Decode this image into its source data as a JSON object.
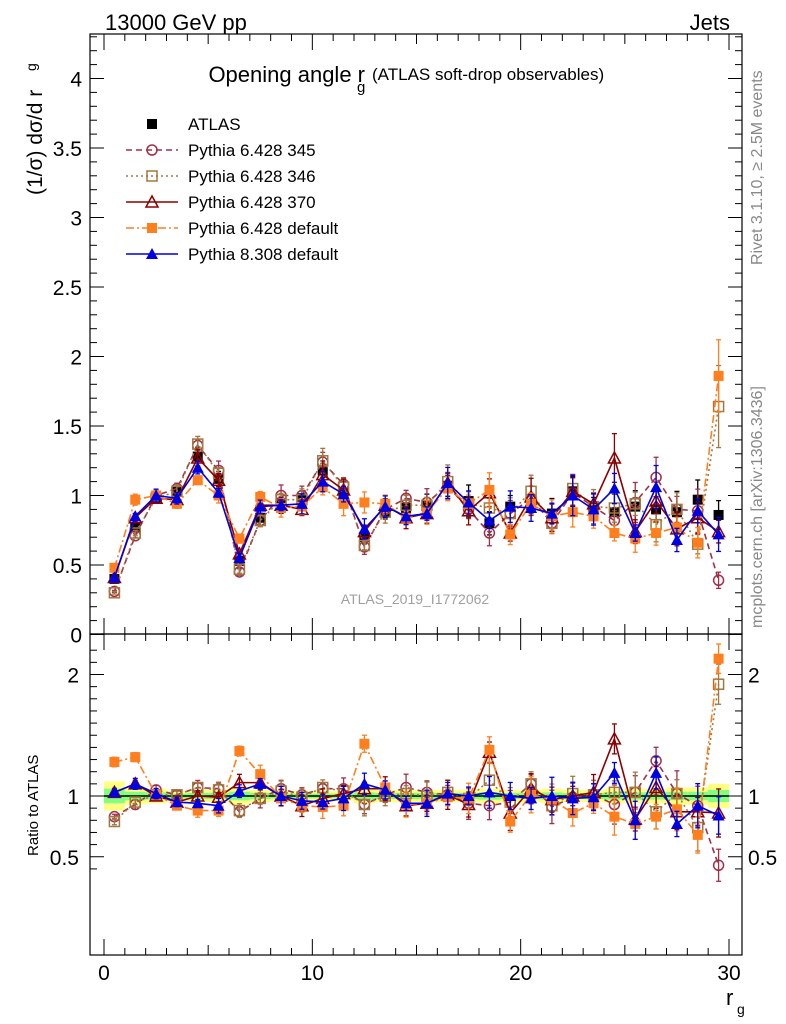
{
  "header": {
    "process": "13000 GeV pp",
    "category": "Jets",
    "title_main": "Opening angle r",
    "title_sub": "g",
    "title_paren": "(ATLAS soft-drop observables)",
    "ylabel_main": "(1/σ) dσ/d r",
    "ylabel_sub": "g",
    "side_rivet": "Rivet 3.1.10, ≥ 2.5M events",
    "side_mcplots": "mcplots.cern.ch [arXiv:1306.3436]",
    "analysis_id": "ATLAS_2019_I1772062",
    "ratio_ylabel": "Ratio to ATLAS",
    "xlabel_main": "r",
    "xlabel_sub": "g"
  },
  "colors": {
    "atlas": "#000000",
    "p345": "#a0304a",
    "p346": "#a07840",
    "p370": "#8b0000",
    "p6def": "#ff7f1e",
    "p8def": "#0000e0",
    "band_inner": "#80ff80",
    "band_outer": "#ffff80"
  },
  "chart_data": [
    {
      "type": "line",
      "panel": "main",
      "ylim": [
        0,
        4.3
      ],
      "xlim": [
        0,
        30
      ],
      "x": [
        0.5,
        1.5,
        2.5,
        3.5,
        4.5,
        5.5,
        6.5,
        7.5,
        8.5,
        9.5,
        10.5,
        11.5,
        12.5,
        13.5,
        14.5,
        15.5,
        16.5,
        17.5,
        18.5,
        19.5,
        20.5,
        21.5,
        22.5,
        23.5,
        24.5,
        25.5,
        26.5,
        27.5,
        28.5,
        29.5
      ],
      "yticks": [
        "0",
        "0.5",
        "1",
        "1.5",
        "2",
        "2.5",
        "3",
        "3.5",
        "4"
      ],
      "xticks": [
        "0",
        "10",
        "20",
        "30"
      ],
      "legend_position": "top-left",
      "series": [
        {
          "name": "ATLAS",
          "values": [
            0.4,
            0.77,
            0.98,
            1.03,
            1.28,
            1.12,
            0.53,
            0.84,
            0.93,
            0.98,
            1.18,
            1.02,
            0.7,
            0.88,
            0.91,
            0.93,
            1.07,
            0.96,
            0.8,
            0.92,
            0.93,
            0.87,
            1.03,
            0.91,
            0.88,
            0.92,
            0.9,
            0.88,
            0.97,
            0.86
          ]
        },
        {
          "name": "Pythia 6.428 345",
          "values": [
            0.31,
            0.71,
            1.0,
            1.05,
            1.36,
            1.18,
            0.45,
            0.82,
            1.0,
            1.0,
            1.24,
            1.08,
            0.63,
            0.9,
            0.98,
            0.95,
            1.07,
            0.9,
            0.73,
            0.87,
            0.98,
            0.8,
            1.02,
            0.92,
            0.82,
            0.95,
            1.13,
            0.9,
            0.89,
            0.39
          ]
        },
        {
          "name": "Pythia 6.428 346",
          "values": [
            0.3,
            0.73,
            0.98,
            1.03,
            1.37,
            1.16,
            0.47,
            0.82,
            0.97,
            0.97,
            1.25,
            1.06,
            0.64,
            0.88,
            0.93,
            0.93,
            1.1,
            0.94,
            0.91,
            0.87,
            1.03,
            0.8,
            1.05,
            0.92,
            0.91,
            0.94,
            0.79,
            0.9,
            0.65,
            1.64
          ]
        },
        {
          "name": "Pythia 6.428 370",
          "values": [
            0.41,
            0.84,
            0.98,
            0.97,
            1.27,
            1.11,
            0.58,
            0.93,
            0.93,
            0.9,
            1.15,
            1.04,
            0.74,
            0.93,
            0.84,
            0.87,
            1.09,
            0.89,
            1.02,
            0.73,
            0.99,
            0.84,
            1.03,
            0.94,
            1.27,
            0.74,
            0.96,
            0.76,
            0.84,
            0.74
          ]
        },
        {
          "name": "Pythia 6.428 default",
          "values": [
            0.48,
            0.97,
            1.0,
            0.94,
            1.11,
            1.0,
            0.69,
            0.99,
            0.91,
            0.92,
            1.06,
            0.94,
            0.95,
            0.94,
            0.84,
            0.88,
            1.05,
            0.94,
            1.04,
            0.72,
            0.94,
            0.85,
            0.88,
            0.85,
            0.73,
            0.69,
            0.73,
            0.77,
            0.66,
            1.86
          ]
        },
        {
          "name": "Pythia 8.308 default",
          "values": [
            0.41,
            0.85,
            1.0,
            0.98,
            1.2,
            1.02,
            0.55,
            0.92,
            0.93,
            0.94,
            1.1,
            1.01,
            0.76,
            0.92,
            0.85,
            0.87,
            1.09,
            0.95,
            0.82,
            0.92,
            0.91,
            0.87,
            1.0,
            0.9,
            1.05,
            0.73,
            1.06,
            0.68,
            0.89,
            0.72
          ]
        }
      ]
    },
    {
      "type": "line",
      "panel": "ratio",
      "ylabel": "Ratio to ATLAS",
      "ylim": [
        0.37,
        2.25
      ],
      "xlim": [
        0,
        30
      ],
      "yticks": [
        "0.5",
        "1",
        "2"
      ],
      "xticks": [
        "0",
        "10",
        "20",
        "30"
      ],
      "xlabel": "r_g",
      "series": [
        {
          "name": "Pythia 6.428 345",
          "values": [
            0.83,
            0.93,
            1.05,
            1.01,
            1.07,
            1.06,
            0.87,
            0.98,
            1.06,
            1.01,
            1.06,
            1.06,
            0.93,
            1.01,
            1.07,
            1.03,
            1.01,
            0.94,
            0.92,
            0.95,
            1.1,
            0.91,
            0.99,
            1.01,
            0.93,
            1.03,
            1.29,
            1.02,
            0.92,
            0.43
          ]
        },
        {
          "name": "Pythia 6.428 346",
          "values": [
            0.79,
            0.95,
            1.01,
            1.01,
            1.07,
            1.05,
            0.88,
            0.98,
            1.04,
            0.99,
            1.07,
            1.04,
            0.93,
            1.0,
            1.02,
            1.0,
            1.03,
            0.98,
            1.13,
            0.95,
            1.1,
            0.92,
            1.02,
            1.01,
            1.03,
            1.03,
            0.87,
            1.02,
            0.74,
            1.92
          ]
        },
        {
          "name": "Pythia 6.428 370",
          "values": [
            1.03,
            1.1,
            1.0,
            0.95,
            1.0,
            0.99,
            1.11,
            1.11,
            1.0,
            0.92,
            0.98,
            1.02,
            1.06,
            1.06,
            0.92,
            0.94,
            1.01,
            0.93,
            1.36,
            0.86,
            1.06,
            0.97,
            1.0,
            1.03,
            1.47,
            0.81,
            1.07,
            0.87,
            0.87,
            0.86
          ]
        },
        {
          "name": "Pythia 6.428 default",
          "values": [
            1.28,
            1.32,
            1.01,
            0.92,
            0.88,
            0.88,
            1.37,
            1.18,
            0.98,
            0.92,
            0.91,
            0.92,
            1.43,
            1.07,
            0.93,
            0.94,
            0.99,
            0.98,
            1.38,
            0.79,
            1.01,
            0.97,
            0.86,
            0.94,
            0.83,
            0.77,
            0.83,
            0.89,
            0.68,
            2.13
          ]
        },
        {
          "name": "Pythia 8.308 default",
          "values": [
            1.03,
            1.1,
            1.02,
            0.95,
            0.94,
            0.92,
            1.04,
            1.1,
            1.0,
            0.96,
            0.95,
            0.98,
            1.1,
            1.05,
            0.94,
            0.94,
            1.02,
            1.0,
            1.03,
            1.0,
            0.98,
            1.0,
            0.98,
            0.99,
            1.19,
            0.8,
            1.19,
            0.77,
            0.92,
            0.84
          ]
        }
      ]
    }
  ]
}
